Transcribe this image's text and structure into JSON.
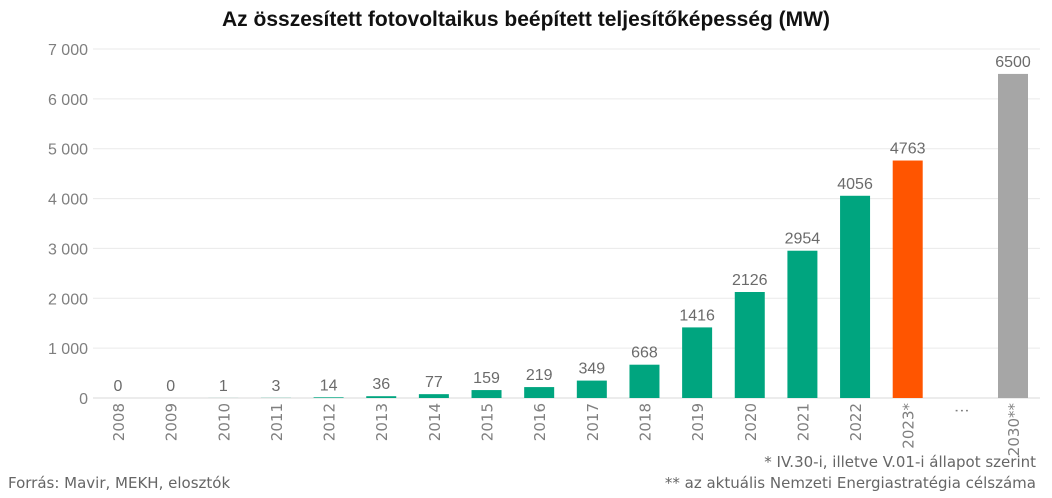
{
  "chart_data": {
    "type": "bar",
    "title": "Az összesített fotovoltaikus beépített teljesítőképesség (MW)",
    "xlabel": "",
    "ylabel": "",
    "ylim": [
      0,
      7000
    ],
    "yticks": [
      0,
      1000,
      2000,
      3000,
      4000,
      5000,
      6000,
      7000
    ],
    "ytick_labels": [
      "0",
      "1 000",
      "2 000",
      "3 000",
      "4 000",
      "5 000",
      "6 000",
      "7 000"
    ],
    "grid": true,
    "categories": [
      "2008",
      "2009",
      "2010",
      "2011",
      "2012",
      "2013",
      "2014",
      "2015",
      "2016",
      "2017",
      "2018",
      "2019",
      "2020",
      "2021",
      "2022",
      "2023*",
      "⋮",
      "2030**"
    ],
    "values": [
      0,
      0,
      1,
      3,
      14,
      36,
      77,
      159,
      219,
      349,
      668,
      1416,
      2126,
      2954,
      4056,
      4763,
      null,
      6500
    ],
    "data_labels": [
      "0",
      "0",
      "1",
      "3",
      "14",
      "36",
      "77",
      "159",
      "219",
      "349",
      "668",
      "1416",
      "2126",
      "2954",
      "4056",
      "4763",
      "",
      "6500"
    ],
    "bar_colors": [
      "#00a57f",
      "#00a57f",
      "#00a57f",
      "#00a57f",
      "#00a57f",
      "#00a57f",
      "#00a57f",
      "#00a57f",
      "#00a57f",
      "#00a57f",
      "#00a57f",
      "#00a57f",
      "#00a57f",
      "#00a57f",
      "#00a57f",
      "#ff5500",
      "#00a57f",
      "#a6a6a6"
    ]
  },
  "footer": {
    "source": "Forrás: Mavir, MEKH, elosztók",
    "note1": "* IV.30-i, illetve V.01-i állapot szerint",
    "note2": "** az aktuális Nemzeti Energiastratégia célszáma"
  }
}
